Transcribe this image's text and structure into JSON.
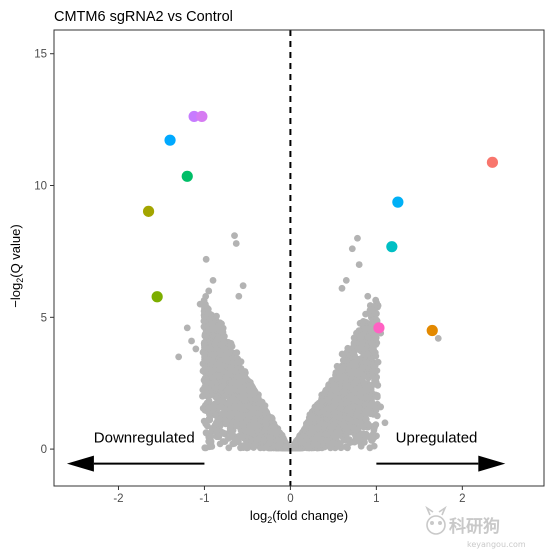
{
  "chart_data": {
    "type": "scatter",
    "title": "CMTM6 sgRNA2 vs Control",
    "xlabel": "log2(fold change)",
    "ylabel": "−log2(Q value)",
    "xlim": [
      -2.75,
      2.95
    ],
    "ylim": [
      -1.4,
      15.9
    ],
    "x_ticks": [
      -2,
      -1,
      0,
      1,
      2
    ],
    "y_ticks": [
      0,
      5,
      10,
      15
    ],
    "grid": false,
    "legend": "none",
    "vertical_reference_line": {
      "x": 0,
      "style": "dashed"
    },
    "annotations": [
      {
        "id": "down",
        "text": "Downregulated",
        "x": -1.7,
        "y": 0.25,
        "arrow_from": -1.0,
        "arrow_to": -2.6,
        "arrow_y": -0.55
      },
      {
        "id": "up",
        "text": "Upregulated",
        "x": 1.7,
        "y": 0.25,
        "arrow_from": 1.0,
        "arrow_to": 2.5,
        "arrow_y": -0.55
      }
    ],
    "highlighted_points": [
      {
        "x": -1.12,
        "y": 12.62,
        "color": "#C77CFF"
      },
      {
        "x": -1.03,
        "y": 12.62,
        "color": "#D67CF2"
      },
      {
        "x": -1.4,
        "y": 11.72,
        "color": "#00A9FF"
      },
      {
        "x": -1.2,
        "y": 10.35,
        "color": "#00BE67"
      },
      {
        "x": -1.65,
        "y": 9.02,
        "color": "#A3A500"
      },
      {
        "x": -1.55,
        "y": 5.78,
        "color": "#7CAE00"
      },
      {
        "x": 2.35,
        "y": 10.88,
        "color": "#F8766D"
      },
      {
        "x": 1.25,
        "y": 9.37,
        "color": "#00B0F6"
      },
      {
        "x": 1.18,
        "y": 7.68,
        "color": "#00BFC4"
      },
      {
        "x": 1.03,
        "y": 4.6,
        "color": "#FF61C3"
      },
      {
        "x": 1.65,
        "y": 4.5,
        "color": "#E38900"
      }
    ],
    "background_points": {
      "color": "#b3b3b3",
      "count": 4000,
      "outliers": [
        [
          -0.65,
          8.1
        ],
        [
          -0.63,
          7.8
        ],
        [
          -0.98,
          7.2
        ],
        [
          -0.9,
          6.4
        ],
        [
          -0.95,
          6.0
        ],
        [
          -0.55,
          6.2
        ],
        [
          -0.6,
          5.8
        ],
        [
          -1.05,
          5.5
        ],
        [
          -1.2,
          4.6
        ],
        [
          -1.15,
          4.1
        ],
        [
          -1.0,
          3.6
        ],
        [
          -0.85,
          3.2
        ],
        [
          -0.75,
          2.7
        ],
        [
          -0.7,
          2.2
        ],
        [
          -0.62,
          1.6
        ],
        [
          -0.55,
          0.9
        ],
        [
          -0.45,
          0.6
        ],
        [
          -1.3,
          3.5
        ],
        [
          -1.1,
          3.8
        ],
        [
          0.78,
          8.0
        ],
        [
          0.72,
          7.6
        ],
        [
          0.8,
          7.0
        ],
        [
          0.65,
          6.4
        ],
        [
          0.6,
          6.1
        ],
        [
          0.9,
          5.8
        ],
        [
          0.95,
          5.3
        ],
        [
          1.0,
          4.9
        ],
        [
          1.05,
          4.4
        ],
        [
          0.95,
          4.0
        ],
        [
          0.9,
          3.6
        ],
        [
          1.02,
          3.3
        ],
        [
          0.85,
          2.8
        ],
        [
          0.8,
          2.3
        ],
        [
          0.75,
          1.9
        ],
        [
          0.7,
          1.4
        ],
        [
          1.05,
          1.6
        ],
        [
          1.1,
          1.0
        ],
        [
          0.65,
          0.55
        ],
        [
          0.6,
          3.0
        ],
        [
          1.72,
          4.2
        ]
      ]
    }
  },
  "watermark": {
    "name": "科研狗",
    "url": "keyangou.com"
  }
}
